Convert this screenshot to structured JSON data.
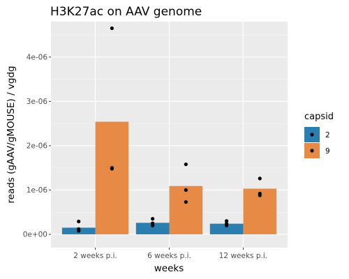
{
  "chart_data": {
    "type": "bar",
    "title": "H3K27ac on AAV genome",
    "xlabel": "weeks",
    "ylabel": "reads (gAAV/gMOUSE) / vgdg",
    "categories": [
      "2 weeks p.i.",
      "6 weeks p.i.",
      "12 weeks p.i."
    ],
    "ylim": [
      -3e-07,
      4.8e-06
    ],
    "yticks": [
      0,
      1e-06,
      2e-06,
      3e-06,
      4e-06
    ],
    "ytick_labels": [
      "0e+00",
      "1e-06",
      "2e-06",
      "3e-06",
      "4e-06"
    ],
    "grid": true,
    "legend": {
      "title": "capsid",
      "position": "right"
    },
    "series": [
      {
        "name": "2",
        "color": "#2a7fb0",
        "values": [
          1.5e-07,
          2.6e-07,
          2.4e-07
        ],
        "points": [
          [
            8e-08,
            1.2e-07,
            2.9e-07
          ],
          [
            2e-07,
            2.5e-07,
            3.5e-07
          ],
          [
            2e-07,
            2.4e-07,
            3e-07
          ]
        ]
      },
      {
        "name": "9",
        "color": "#e68a45",
        "values": [
          2.54e-06,
          1.09e-06,
          1.03e-06
        ],
        "points": [
          [
            1.48e-06,
            1.5e-06,
            4.65e-06
          ],
          [
            7.3e-07,
            1e-06,
            1.58e-06
          ],
          [
            8.8e-07,
            9.2e-07,
            1.26e-06
          ]
        ]
      }
    ]
  }
}
